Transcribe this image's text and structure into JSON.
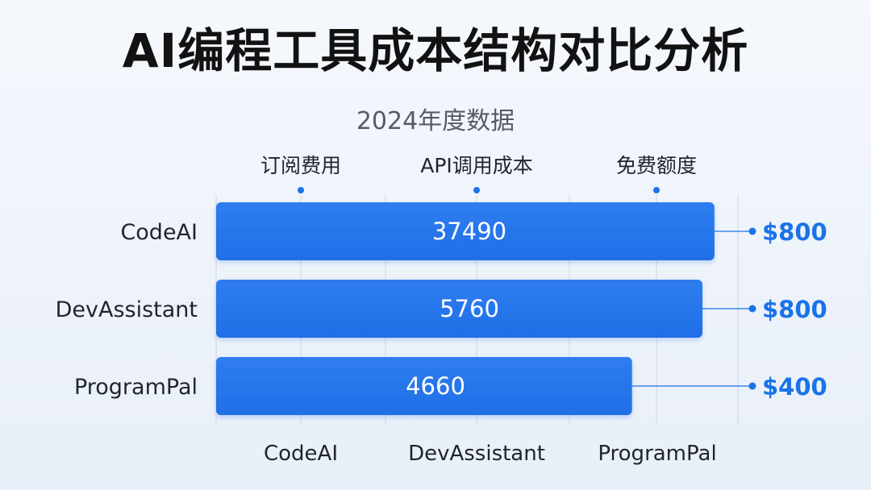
{
  "title": "AI编程工具成本结构对比分析",
  "subtitle": "2024年度数据",
  "colors": {
    "bar": "#2f7df0",
    "bar_dark": "#1f6fe6",
    "accent": "#1a73e8",
    "grid": "#d3dae6",
    "text": "#1f2430"
  },
  "chart_data": {
    "type": "bar",
    "orientation": "horizontal",
    "categories": [
      "CodeAI",
      "DevAssistant",
      "ProgramPal"
    ],
    "values": [
      37490,
      5760,
      4660
    ],
    "data_labels": [
      "37490",
      "5760",
      "4660"
    ],
    "side_labels": [
      "$800",
      "$800",
      "$400"
    ],
    "top_axis_labels": [
      "订阅费用",
      "API调用成本",
      "免费额度"
    ],
    "bottom_axis_labels": [
      "CodeAI",
      "DevAssistant",
      "ProgramPal"
    ],
    "bar_length_fraction": [
      0.955,
      0.932,
      0.797
    ],
    "grid": true
  }
}
